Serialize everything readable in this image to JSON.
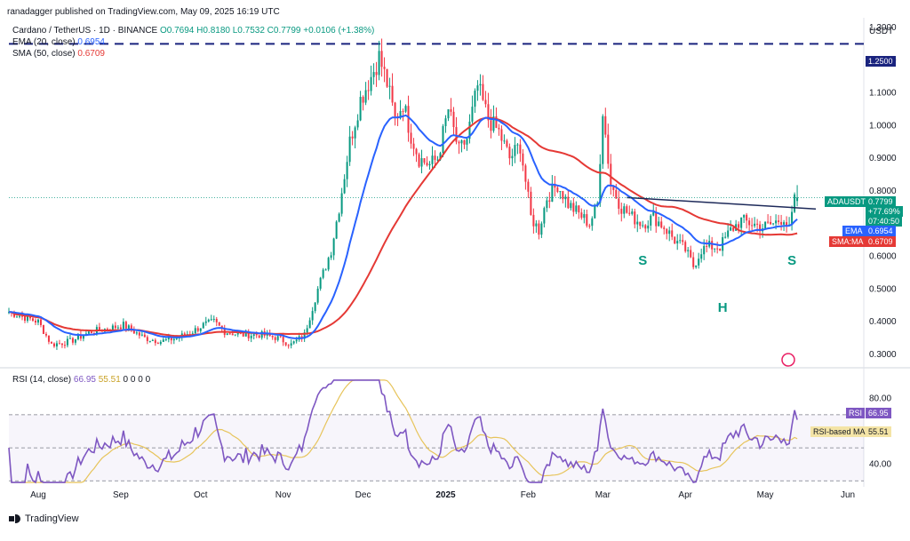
{
  "header": {
    "published": "ranadagger published on TradingView.com, May 09, 2025 16:19 UTC",
    "symbol_title": "Cardano / TetherUS · 1D · BINANCE",
    "ohlc": "O0.7694 H0.8180 L0.7532 C0.7799 +0.0106 (+1.38%)",
    "ema_label": "EMA (20, close)",
    "ema_value": "0.6954",
    "sma_label": "SMA (50, close)",
    "sma_value": "0.6709",
    "rsi_label": "RSI (14, close)",
    "rsi_value": "66.95",
    "rsi_ma_value": "55.51",
    "rsi_extra": "0 0 0 0"
  },
  "currency": "USDT",
  "footer": {
    "logo_text": "TradingView"
  },
  "colors": {
    "up": "#089981",
    "down": "#f23645",
    "ema": "#2962ff",
    "sma": "#e53935",
    "rsi": "#7e57c2",
    "rsi_ma": "#e7c45b",
    "dashed": "#1a237e",
    "neck": "#1e2a5a",
    "pattern": "#089981"
  },
  "badges": {
    "resistance": "1.2500",
    "ticker": "ADAUSDT",
    "price": "0.7799",
    "change": "+77.69%",
    "countdown": "07:40:50",
    "ema_tag": "EMA",
    "ema_val": "0.6954",
    "sma_tag": "SMA:MA",
    "sma_val": "0.6709",
    "rsi_tag": "RSI",
    "rsi_val": "66.95",
    "rsima_tag": "RSI-based MA",
    "rsima_val": "55.51"
  },
  "chart_data": {
    "type": "candlestick",
    "title": "Cardano / TetherUS · 1D · BINANCE",
    "price_ticks": [
      "1.3000",
      "1.2000",
      "1.1000",
      "1.0000",
      "0.9000",
      "0.8000",
      "0.6000",
      "0.5000",
      "0.4000",
      "0.3000"
    ],
    "price_tick_values": [
      1.3,
      1.2,
      1.1,
      1.0,
      0.9,
      0.8,
      0.6,
      0.5,
      0.4,
      0.3
    ],
    "price_range": [
      0.27,
      1.33
    ],
    "rsi_ticks": [
      "80.00",
      "60.00",
      "40.00"
    ],
    "rsi_tick_values": [
      80,
      60,
      40
    ],
    "rsi_range": [
      28,
      92
    ],
    "rsi_bands": [
      70,
      50,
      30
    ],
    "time_labels": [
      {
        "t": "Aug",
        "d": 0
      },
      {
        "t": "Sep",
        "d": 31
      },
      {
        "t": "Oct",
        "d": 61
      },
      {
        "t": "Nov",
        "d": 92
      },
      {
        "t": "Dec",
        "d": 122
      },
      {
        "t": "2025",
        "d": 153
      },
      {
        "t": "Feb",
        "d": 184
      },
      {
        "t": "Mar",
        "d": 212
      },
      {
        "t": "Apr",
        "d": 243
      },
      {
        "t": "May",
        "d": 273
      },
      {
        "t": "Jun",
        "d": 304
      }
    ],
    "day_range": [
      -11,
      310
    ],
    "resistance_level": 1.25,
    "neckline": {
      "from": {
        "d": 221,
        "v": 0.78
      },
      "to": {
        "d": 292,
        "v": 0.745
      }
    },
    "pattern_labels": [
      {
        "text": "S",
        "d": 227,
        "v": 0.575
      },
      {
        "text": "H",
        "d": 257,
        "v": 0.43
      },
      {
        "text": "S",
        "d": 283,
        "v": 0.575
      }
    ],
    "close_anchors": [
      [
        -11,
        0.43
      ],
      [
        0,
        0.4
      ],
      [
        5,
        0.33
      ],
      [
        12,
        0.34
      ],
      [
        20,
        0.37
      ],
      [
        27,
        0.38
      ],
      [
        32,
        0.39
      ],
      [
        40,
        0.35
      ],
      [
        46,
        0.34
      ],
      [
        52,
        0.35
      ],
      [
        58,
        0.37
      ],
      [
        62,
        0.39
      ],
      [
        66,
        0.4
      ],
      [
        70,
        0.37
      ],
      [
        76,
        0.36
      ],
      [
        84,
        0.36
      ],
      [
        90,
        0.35
      ],
      [
        95,
        0.33
      ],
      [
        100,
        0.36
      ],
      [
        105,
        0.5
      ],
      [
        110,
        0.62
      ],
      [
        113,
        0.75
      ],
      [
        117,
        0.95
      ],
      [
        121,
        1.08
      ],
      [
        125,
        1.15
      ],
      [
        128,
        1.21
      ],
      [
        131,
        1.13
      ],
      [
        134,
        1.02
      ],
      [
        137,
        1.07
      ],
      [
        140,
        0.97
      ],
      [
        143,
        0.9
      ],
      [
        147,
        0.88
      ],
      [
        150,
        0.9
      ],
      [
        154,
        1.05
      ],
      [
        158,
        0.92
      ],
      [
        161,
        0.96
      ],
      [
        165,
        1.12
      ],
      [
        169,
        1.02
      ],
      [
        173,
        0.98
      ],
      [
        177,
        0.9
      ],
      [
        181,
        0.94
      ],
      [
        185,
        0.72
      ],
      [
        188,
        0.68
      ],
      [
        191,
        0.78
      ],
      [
        195,
        0.82
      ],
      [
        199,
        0.76
      ],
      [
        203,
        0.73
      ],
      [
        207,
        0.7
      ],
      [
        210,
        0.76
      ],
      [
        212,
        1.05
      ],
      [
        215,
        0.82
      ],
      [
        219,
        0.75
      ],
      [
        223,
        0.72
      ],
      [
        227,
        0.7
      ],
      [
        231,
        0.72
      ],
      [
        235,
        0.69
      ],
      [
        239,
        0.65
      ],
      [
        243,
        0.62
      ],
      [
        246,
        0.57
      ],
      [
        249,
        0.62
      ],
      [
        252,
        0.63
      ],
      [
        256,
        0.63
      ],
      [
        260,
        0.68
      ],
      [
        264,
        0.71
      ],
      [
        268,
        0.7
      ],
      [
        272,
        0.69
      ],
      [
        276,
        0.7
      ],
      [
        280,
        0.72
      ],
      [
        282,
        0.68
      ],
      [
        284,
        0.77
      ],
      [
        285,
        0.78
      ]
    ],
    "last_candle": {
      "open": 0.7694,
      "high": 0.818,
      "low": 0.7532,
      "close": 0.7799
    },
    "ema20_last": 0.6954,
    "sma50_last": 0.6709,
    "rsi_last": 66.95,
    "rsi_ma_last": 55.51
  }
}
